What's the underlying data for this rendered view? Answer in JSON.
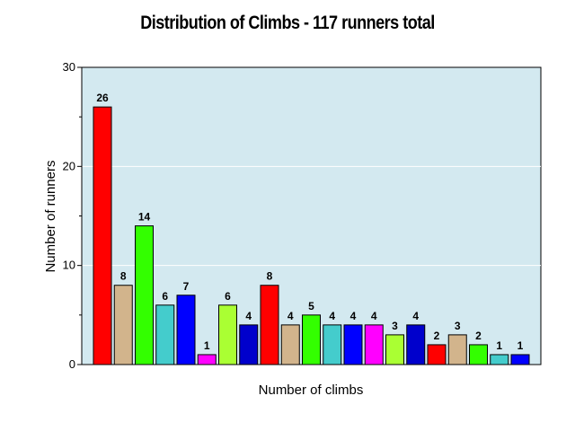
{
  "chart_data": {
    "type": "bar",
    "title": "Distribution of Climbs - 117 runners total",
    "xlabel": "Number of climbs",
    "ylabel": "Number of runners",
    "ylim": [
      0,
      30
    ],
    "yticks": [
      "0",
      "10",
      "20",
      "30"
    ],
    "grid": true,
    "values": [
      26,
      8,
      14,
      6,
      7,
      1,
      6,
      4,
      8,
      4,
      5,
      4,
      4,
      4,
      3,
      4,
      2,
      3,
      2,
      1,
      1
    ],
    "colors": [
      "#ff0000",
      "#d2b48c",
      "#33ff00",
      "#44cccc",
      "#0000ff",
      "#ff00ff",
      "#aaff33",
      "#0000cc",
      "#ff0000",
      "#d2b48c",
      "#33ff00",
      "#44cccc",
      "#0000ff",
      "#ff00ff",
      "#aaff33",
      "#0000cc",
      "#ff0000",
      "#d2b48c",
      "#33ff00",
      "#44cccc",
      "#0000ff"
    ],
    "plot_background": "#d3e9f0"
  }
}
